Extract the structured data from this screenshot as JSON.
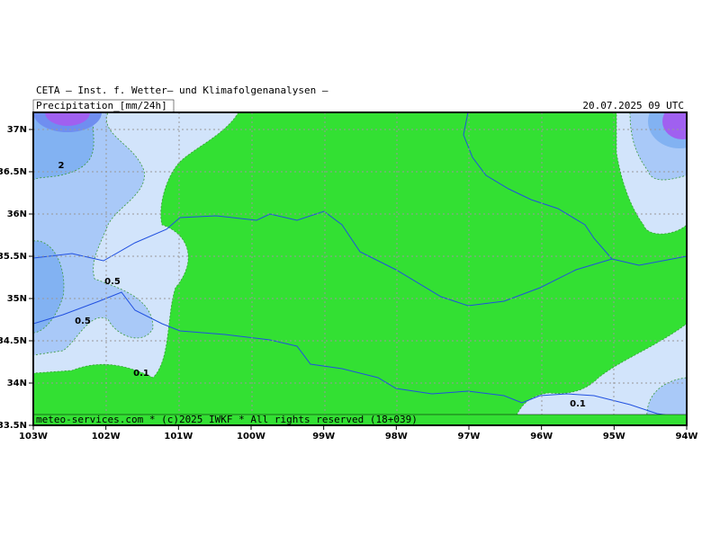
{
  "header": {
    "title": "CETA — Inst. f. Wetter— und Klimafolgenanalysen —",
    "subtitle": "Precipitation_[mm/24h]",
    "date": "20.07.2025 09 UTC"
  },
  "map": {
    "lon_labels": [
      "103W",
      "102W",
      "101W",
      "100W",
      "99W",
      "98W",
      "97W",
      "96W",
      "95W",
      "94W"
    ],
    "lat_labels": [
      "37N",
      "36.5N",
      "36N",
      "35.5N",
      "35N",
      "34.5N",
      "34N",
      "33.5N"
    ],
    "contour_labels": [
      "2",
      "0.5",
      "0.5",
      "0.1",
      "0.1"
    ]
  },
  "footer": "meteo-services.com * (c)2025 IWKF * All rights reserved (18+039)"
}
